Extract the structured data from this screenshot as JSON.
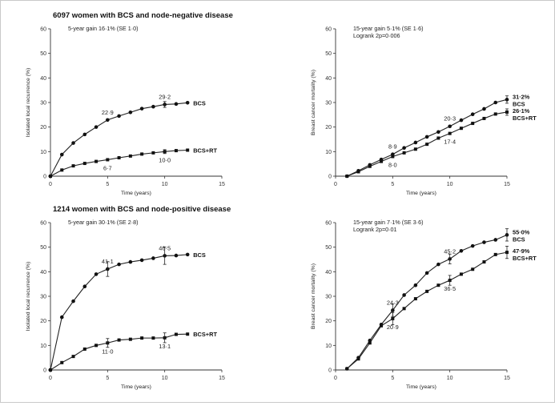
{
  "figure": {
    "group_titles": [
      "6097 women with BCS and node-negative disease",
      "1214 women with BCS and node-positive disease"
    ]
  },
  "chart_data": [
    {
      "type": "line",
      "xlabel": "Time (years)",
      "ylabel": "Isolated local recurrence (%)",
      "xlim": [
        0,
        15
      ],
      "ylim": [
        0,
        60
      ],
      "xticks": [
        0,
        5,
        10,
        15
      ],
      "yticks": [
        0,
        10,
        20,
        30,
        40,
        50,
        60
      ],
      "annotations": [
        "5-year gain 16·1% (SE 1·0)"
      ],
      "grid": false,
      "series": [
        {
          "name": "BCS",
          "marker": "filled-circle",
          "x": [
            0,
            1,
            2,
            3,
            4,
            5,
            6,
            7,
            8,
            9,
            10,
            11,
            12
          ],
          "y": [
            0,
            8.8,
            13.5,
            17,
            20,
            22.9,
            24.5,
            26,
            27.5,
            28.3,
            29.2,
            29.4,
            29.9
          ],
          "end_label": "BCS",
          "point_labels": [
            {
              "x": 5,
              "text": "22·9",
              "pos": "above"
            },
            {
              "x": 10,
              "text": "29·2",
              "pos": "above"
            }
          ],
          "error_bars": [
            {
              "x": 10,
              "err": 1.2
            }
          ]
        },
        {
          "name": "BCS+RT",
          "marker": "filled-square",
          "x": [
            0,
            1,
            2,
            3,
            4,
            5,
            6,
            7,
            8,
            9,
            10,
            11,
            12
          ],
          "y": [
            0,
            2.5,
            4.2,
            5.2,
            6,
            6.7,
            7.5,
            8.2,
            9,
            9.5,
            10,
            10.4,
            10.6
          ],
          "end_label": "BCS+RT",
          "point_labels": [
            {
              "x": 5,
              "text": "6·7",
              "pos": "below"
            },
            {
              "x": 10,
              "text": "10·0",
              "pos": "below"
            }
          ],
          "error_bars": [
            {
              "x": 10,
              "err": 0.8
            }
          ]
        }
      ]
    },
    {
      "type": "line",
      "xlabel": "Time (years)",
      "ylabel": "Breast cancer mortality (%)",
      "xlim": [
        0,
        15
      ],
      "ylim": [
        0,
        60
      ],
      "xticks": [
        0,
        5,
        10,
        15
      ],
      "yticks": [
        0,
        10,
        20,
        30,
        40,
        50,
        60
      ],
      "annotations": [
        "15-year gain 5·1% (SE 1·6)",
        "Logrank 2p=0·006"
      ],
      "grid": false,
      "series": [
        {
          "name": "BCS",
          "marker": "filled-circle",
          "x": [
            1,
            2,
            3,
            4,
            5,
            6,
            7,
            8,
            9,
            10,
            11,
            12,
            13,
            14,
            15
          ],
          "y": [
            0,
            2.2,
            4.6,
            6.8,
            8.9,
            11.5,
            13.7,
            16,
            18,
            20.3,
            22.8,
            25.2,
            27.4,
            30,
            31.2
          ],
          "end_label": "31·2%",
          "end_label_2": "BCS",
          "point_labels": [
            {
              "x": 5,
              "text": "8·9",
              "pos": "above"
            },
            {
              "x": 10,
              "text": "20·3",
              "pos": "above"
            }
          ],
          "error_bars": [
            {
              "x": 15,
              "err": 1.5
            }
          ]
        },
        {
          "name": "BCS+RT",
          "marker": "filled-square",
          "x": [
            1,
            2,
            3,
            4,
            5,
            6,
            7,
            8,
            9,
            10,
            11,
            12,
            13,
            14,
            15
          ],
          "y": [
            0,
            1.8,
            4,
            6,
            8,
            9.5,
            11,
            13,
            15.5,
            17.4,
            19.5,
            21.5,
            23.5,
            25.3,
            26.1
          ],
          "end_label": "26·1%",
          "end_label_2": "BCS+RT",
          "point_labels": [
            {
              "x": 5,
              "text": "8·0",
              "pos": "below"
            },
            {
              "x": 10,
              "text": "17·4",
              "pos": "below"
            }
          ],
          "error_bars": [
            {
              "x": 15,
              "err": 1.3
            }
          ]
        }
      ]
    },
    {
      "type": "line",
      "xlabel": "Time (years)",
      "ylabel": "Isolated local recurrence (%)",
      "xlim": [
        0,
        15
      ],
      "ylim": [
        0,
        60
      ],
      "xticks": [
        0,
        5,
        10,
        15
      ],
      "yticks": [
        0,
        10,
        20,
        30,
        40,
        50,
        60
      ],
      "annotations": [
        "5-year gain 30·1% (SE 2·8)"
      ],
      "grid": false,
      "series": [
        {
          "name": "BCS",
          "marker": "filled-circle",
          "x": [
            0,
            1,
            2,
            3,
            4,
            5,
            6,
            7,
            8,
            9,
            10,
            11,
            12
          ],
          "y": [
            0,
            21.5,
            28,
            34,
            39,
            41.1,
            43,
            44,
            44.7,
            45.5,
            46.5,
            46.6,
            47
          ],
          "end_label": "BCS",
          "point_labels": [
            {
              "x": 5,
              "text": "41·1",
              "pos": "above"
            },
            {
              "x": 10,
              "text": "46·5",
              "pos": "above"
            }
          ],
          "error_bars": [
            {
              "x": 5,
              "err": 3
            },
            {
              "x": 10,
              "err": 3.5
            }
          ]
        },
        {
          "name": "BCS+RT",
          "marker": "filled-square",
          "x": [
            0,
            1,
            2,
            3,
            4,
            5,
            6,
            7,
            8,
            9,
            10,
            11,
            12
          ],
          "y": [
            0,
            3,
            5.5,
            8.5,
            10,
            11,
            12.2,
            12.5,
            13,
            13,
            13.1,
            14.5,
            14.6
          ],
          "end_label": "BCS+RT",
          "point_labels": [
            {
              "x": 5,
              "text": "11·0",
              "pos": "below"
            },
            {
              "x": 10,
              "text": "13·1",
              "pos": "below"
            }
          ],
          "error_bars": [
            {
              "x": 5,
              "err": 1.8
            },
            {
              "x": 10,
              "err": 2
            }
          ]
        }
      ]
    },
    {
      "type": "line",
      "xlabel": "Time (years)",
      "ylabel": "Breast cancer mortality (%)",
      "xlim": [
        0,
        15
      ],
      "ylim": [
        0,
        60
      ],
      "xticks": [
        0,
        5,
        10,
        15
      ],
      "yticks": [
        0,
        10,
        20,
        30,
        40,
        50,
        60
      ],
      "annotations": [
        "15-year gain 7·1% (SE 3·6)",
        "Logrank 2p=0·01"
      ],
      "grid": false,
      "series": [
        {
          "name": "BCS",
          "marker": "filled-circle",
          "x": [
            1,
            2,
            3,
            4,
            5,
            6,
            7,
            8,
            9,
            10,
            11,
            12,
            13,
            14,
            15
          ],
          "y": [
            0.5,
            5,
            12,
            18.5,
            24.3,
            30.5,
            34.5,
            39.5,
            43,
            45.2,
            48.5,
            50.5,
            52,
            53,
            55
          ],
          "end_label": "55·0%",
          "end_label_2": "BCS",
          "point_labels": [
            {
              "x": 5,
              "text": "24·3",
              "pos": "above"
            },
            {
              "x": 10,
              "text": "45·2",
              "pos": "above"
            }
          ],
          "error_bars": [
            {
              "x": 5,
              "err": 2.5
            },
            {
              "x": 10,
              "err": 2
            },
            {
              "x": 15,
              "err": 2.5
            }
          ]
        },
        {
          "name": "BCS+RT",
          "marker": "filled-square",
          "x": [
            1,
            2,
            3,
            4,
            5,
            6,
            7,
            8,
            9,
            10,
            11,
            12,
            13,
            14,
            15
          ],
          "y": [
            0.5,
            4.5,
            11,
            18,
            20.9,
            25,
            29,
            32,
            34.5,
            36.5,
            39,
            41,
            44,
            47,
            47.9
          ],
          "end_label": "47·9%",
          "end_label_2": "BCS+RT",
          "point_labels": [
            {
              "x": 5,
              "text": "20·9",
              "pos": "below"
            },
            {
              "x": 10,
              "text": "36·5",
              "pos": "below"
            }
          ],
          "error_bars": [
            {
              "x": 5,
              "err": 2.5
            },
            {
              "x": 10,
              "err": 2
            },
            {
              "x": 15,
              "err": 2.5
            }
          ]
        }
      ]
    }
  ]
}
